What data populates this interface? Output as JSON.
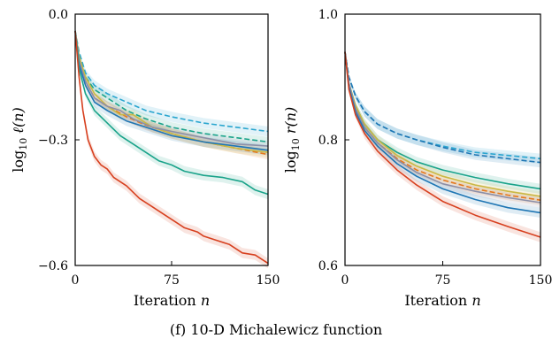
{
  "caption": "(f) 10-D Michalewicz function",
  "colors": {
    "red": "#d7401f",
    "teal": "#1aa38a",
    "blue": "#1f76b4",
    "cyan": "#2aa6cf",
    "orange": "#e5771c",
    "gray": "#8c8fa8",
    "yellow": "#c9b945",
    "green": "#6fbf5a"
  },
  "chart_data": [
    {
      "type": "line",
      "xlabel": "Iteration",
      "xlabel_var": "n",
      "ylabel": "log",
      "ylabel_sub": "10",
      "ylabel_rest": "ℓ(n)",
      "xlim": [
        0,
        150
      ],
      "ylim": [
        -0.6,
        0.0
      ],
      "xticks": [
        0,
        75,
        150
      ],
      "yticks": [
        -0.6,
        -0.3,
        0.0
      ],
      "xtick_labels": [
        "0",
        "75",
        "150"
      ],
      "ytick_labels": [
        "−0.6",
        "−0.3",
        "0.0"
      ],
      "grid": false,
      "series": [
        {
          "color": "#2aa6cf",
          "dash": true,
          "band": true,
          "x": [
            0,
            3,
            8,
            15,
            25,
            40,
            55,
            75,
            100,
            125,
            150
          ],
          "y": [
            -0.04,
            -0.09,
            -0.14,
            -0.17,
            -0.19,
            -0.21,
            -0.23,
            -0.245,
            -0.26,
            -0.27,
            -0.28
          ]
        },
        {
          "color": "#1aa38a",
          "dash": true,
          "band": true,
          "x": [
            0,
            3,
            8,
            15,
            25,
            40,
            55,
            75,
            100,
            125,
            150
          ],
          "y": [
            -0.04,
            -0.1,
            -0.15,
            -0.18,
            -0.2,
            -0.23,
            -0.25,
            -0.27,
            -0.285,
            -0.295,
            -0.305
          ]
        },
        {
          "color": "#e5771c",
          "dash": true,
          "band": true,
          "x": [
            0,
            3,
            8,
            15,
            25,
            40,
            55,
            75,
            100,
            125,
            150
          ],
          "y": [
            -0.04,
            -0.11,
            -0.16,
            -0.2,
            -0.22,
            -0.245,
            -0.265,
            -0.285,
            -0.305,
            -0.32,
            -0.335
          ]
        },
        {
          "color": "#c9b945",
          "dash": false,
          "band": true,
          "x": [
            0,
            3,
            8,
            15,
            25,
            35,
            45,
            60,
            75,
            100,
            125,
            150
          ],
          "y": [
            -0.04,
            -0.1,
            -0.15,
            -0.19,
            -0.22,
            -0.24,
            -0.24,
            -0.27,
            -0.285,
            -0.305,
            -0.32,
            -0.33
          ]
        },
        {
          "color": "#8c8fa8",
          "dash": false,
          "band": true,
          "x": [
            0,
            3,
            8,
            15,
            25,
            35,
            45,
            60,
            75,
            100,
            125,
            150
          ],
          "y": [
            -0.04,
            -0.11,
            -0.16,
            -0.2,
            -0.22,
            -0.23,
            -0.25,
            -0.27,
            -0.28,
            -0.295,
            -0.31,
            -0.315
          ]
        },
        {
          "color": "#1f76b4",
          "dash": false,
          "band": true,
          "x": [
            0,
            3,
            8,
            15,
            25,
            40,
            55,
            75,
            100,
            125,
            150
          ],
          "y": [
            -0.04,
            -0.12,
            -0.17,
            -0.21,
            -0.23,
            -0.255,
            -0.27,
            -0.29,
            -0.305,
            -0.315,
            -0.325
          ]
        },
        {
          "color": "#1aa38a",
          "dash": false,
          "band": true,
          "x": [
            0,
            3,
            8,
            15,
            25,
            35,
            45,
            55,
            65,
            75,
            85,
            100,
            115,
            130,
            140,
            150
          ],
          "y": [
            -0.04,
            -0.13,
            -0.19,
            -0.23,
            -0.26,
            -0.29,
            -0.31,
            -0.33,
            -0.35,
            -0.36,
            -0.375,
            -0.385,
            -0.39,
            -0.4,
            -0.42,
            -0.43
          ]
        },
        {
          "color": "#d7401f",
          "dash": false,
          "band": true,
          "x": [
            0,
            3,
            6,
            10,
            15,
            20,
            25,
            30,
            40,
            50,
            60,
            75,
            85,
            95,
            100,
            110,
            120,
            130,
            140,
            150
          ],
          "y": [
            -0.04,
            -0.15,
            -0.23,
            -0.3,
            -0.34,
            -0.36,
            -0.37,
            -0.39,
            -0.41,
            -0.44,
            -0.46,
            -0.49,
            -0.51,
            -0.52,
            -0.53,
            -0.54,
            -0.55,
            -0.57,
            -0.575,
            -0.595
          ]
        }
      ]
    },
    {
      "type": "line",
      "xlabel": "Iteration",
      "xlabel_var": "n",
      "ylabel": "log",
      "ylabel_sub": "10",
      "ylabel_rest": "r(n)",
      "xlim": [
        0,
        150
      ],
      "ylim": [
        0.6,
        1.0
      ],
      "xticks": [
        0,
        75,
        150
      ],
      "yticks": [
        0.6,
        0.8,
        1.0
      ],
      "xtick_labels": [
        "0",
        "75",
        "150"
      ],
      "ytick_labels": [
        "0.6",
        "0.8",
        "1.0"
      ],
      "grid": false,
      "series": [
        {
          "color": "#2aa6cf",
          "dash": true,
          "band": true,
          "x": [
            0,
            3,
            8,
            15,
            25,
            40,
            55,
            75,
            100,
            125,
            150
          ],
          "y": [
            0.94,
            0.9,
            0.87,
            0.845,
            0.825,
            0.81,
            0.8,
            0.79,
            0.78,
            0.775,
            0.77
          ]
        },
        {
          "color": "#1f76b4",
          "dash": true,
          "band": true,
          "x": [
            0,
            3,
            8,
            15,
            25,
            40,
            55,
            75,
            100,
            125,
            150
          ],
          "y": [
            0.94,
            0.9,
            0.87,
            0.845,
            0.825,
            0.81,
            0.8,
            0.788,
            0.776,
            0.77,
            0.764
          ]
        },
        {
          "color": "#1aa38a",
          "dash": false,
          "band": true,
          "x": [
            0,
            3,
            8,
            15,
            25,
            40,
            55,
            75,
            100,
            125,
            150
          ],
          "y": [
            0.94,
            0.89,
            0.855,
            0.825,
            0.8,
            0.78,
            0.765,
            0.752,
            0.74,
            0.73,
            0.722
          ]
        },
        {
          "color": "#c9b945",
          "dash": false,
          "band": true,
          "x": [
            0,
            3,
            8,
            15,
            25,
            40,
            55,
            75,
            100,
            125,
            150
          ],
          "y": [
            0.94,
            0.89,
            0.855,
            0.825,
            0.8,
            0.775,
            0.758,
            0.742,
            0.728,
            0.718,
            0.71
          ]
        },
        {
          "color": "#e5771c",
          "dash": true,
          "band": true,
          "x": [
            0,
            3,
            8,
            15,
            25,
            40,
            55,
            75,
            100,
            125,
            150
          ],
          "y": [
            0.94,
            0.89,
            0.85,
            0.82,
            0.795,
            0.77,
            0.752,
            0.736,
            0.722,
            0.712,
            0.704
          ]
        },
        {
          "color": "#8c8fa8",
          "dash": false,
          "band": true,
          "x": [
            0,
            3,
            8,
            15,
            25,
            40,
            55,
            75,
            100,
            125,
            150
          ],
          "y": [
            0.94,
            0.89,
            0.85,
            0.82,
            0.795,
            0.768,
            0.748,
            0.73,
            0.718,
            0.708,
            0.7
          ]
        },
        {
          "color": "#1f76b4",
          "dash": false,
          "band": true,
          "x": [
            0,
            3,
            8,
            15,
            25,
            40,
            55,
            75,
            100,
            125,
            150
          ],
          "y": [
            0.94,
            0.885,
            0.845,
            0.815,
            0.79,
            0.762,
            0.742,
            0.722,
            0.705,
            0.692,
            0.684
          ]
        },
        {
          "color": "#d7401f",
          "dash": false,
          "band": true,
          "x": [
            0,
            3,
            8,
            15,
            25,
            40,
            55,
            75,
            100,
            125,
            150
          ],
          "y": [
            0.94,
            0.88,
            0.84,
            0.81,
            0.782,
            0.752,
            0.728,
            0.702,
            0.68,
            0.662,
            0.645
          ]
        }
      ]
    }
  ]
}
